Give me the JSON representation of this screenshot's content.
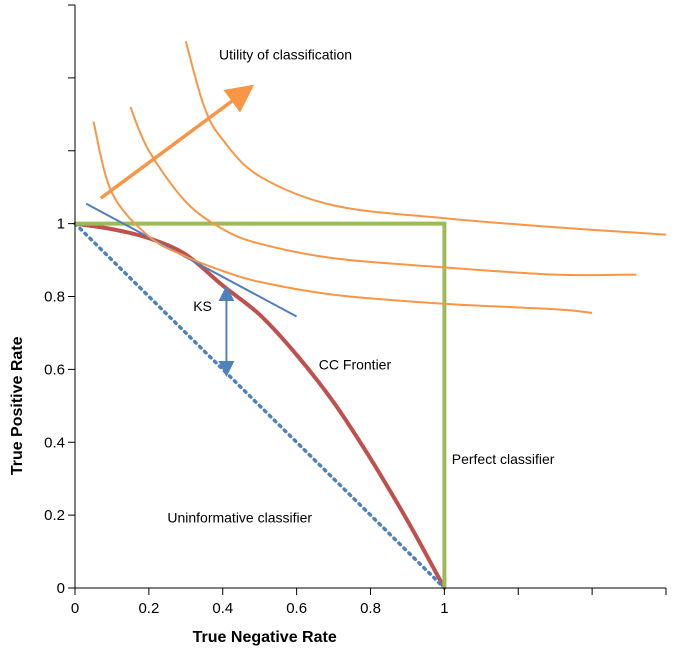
{
  "chart_data": {
    "type": "line",
    "xlabel": "True Negative Rate",
    "ylabel": "True Positive Rate",
    "xlim": [
      0,
      1.6
    ],
    "ylim": [
      0,
      1.6
    ],
    "x_ticks": [
      0,
      0.2,
      0.4,
      0.6,
      0.8,
      1
    ],
    "x_tick_labels": [
      "0",
      "0.2",
      "0.4",
      "0.6",
      "0.8",
      "1"
    ],
    "x_minor_ticks": [
      1.2,
      1.4,
      1.6
    ],
    "y_ticks": [
      0,
      0.2,
      0.4,
      0.6,
      0.8,
      1
    ],
    "y_tick_labels": [
      "0",
      "0.2",
      "0.4",
      "0.6",
      "0.8",
      "1"
    ],
    "y_minor_ticks": [
      1.2,
      1.4,
      1.6
    ],
    "grid": false,
    "series": [
      {
        "label": "CC Frontier",
        "color": "#c0504d",
        "points": [
          [
            0,
            1
          ],
          [
            0.1,
            0.985
          ],
          [
            0.2,
            0.96
          ],
          [
            0.3,
            0.915
          ],
          [
            0.4,
            0.83
          ],
          [
            0.5,
            0.75
          ],
          [
            0.6,
            0.64
          ],
          [
            0.7,
            0.51
          ],
          [
            0.8,
            0.355
          ],
          [
            0.9,
            0.185
          ],
          [
            1,
            0
          ]
        ]
      },
      {
        "label": "Uninformative classifier",
        "color": "#4f81bd",
        "style": "dotted",
        "points": [
          [
            0,
            1
          ],
          [
            1,
            0
          ]
        ]
      },
      {
        "label": "Perfect classifier",
        "color": "#9bbb59",
        "points": [
          [
            0,
            1
          ],
          [
            1,
            1
          ],
          [
            1,
            0
          ]
        ]
      },
      {
        "label": "",
        "color": "#4f81bd",
        "points": [
          [
            0.03,
            1.055
          ],
          [
            0.6,
            0.745
          ]
        ]
      },
      {
        "label": "",
        "color": "#f79646",
        "points": [
          [
            0.05,
            1.28
          ],
          [
            0.1,
            1.085
          ],
          [
            0.2,
            0.965
          ],
          [
            0.3,
            0.91
          ],
          [
            0.4,
            0.87
          ],
          [
            0.5,
            0.84
          ],
          [
            0.7,
            0.805
          ],
          [
            1.0,
            0.78
          ],
          [
            1.3,
            0.765
          ],
          [
            1.4,
            0.755
          ]
        ]
      },
      {
        "label": "",
        "color": "#f79646",
        "points": [
          [
            0.15,
            1.32
          ],
          [
            0.2,
            1.2
          ],
          [
            0.3,
            1.06
          ],
          [
            0.4,
            0.985
          ],
          [
            0.5,
            0.945
          ],
          [
            0.7,
            0.905
          ],
          [
            1.0,
            0.88
          ],
          [
            1.3,
            0.86
          ],
          [
            1.52,
            0.86
          ]
        ]
      },
      {
        "label": "",
        "color": "#f79646",
        "points": [
          [
            0.3,
            1.5
          ],
          [
            0.35,
            1.32
          ],
          [
            0.4,
            1.23
          ],
          [
            0.5,
            1.13
          ],
          [
            0.7,
            1.05
          ],
          [
            1.0,
            1.015
          ],
          [
            1.3,
            0.99
          ],
          [
            1.6,
            0.97
          ]
        ]
      }
    ],
    "annotations": [
      {
        "text": "Utility of classification",
        "x": 0.39,
        "y": 1.45
      },
      {
        "text": "KS",
        "x": 0.32,
        "y": 0.76
      },
      {
        "text": "CC Frontier",
        "x": 0.66,
        "y": 0.6
      },
      {
        "text": "Perfect classifier",
        "x": 1.02,
        "y": 0.34
      },
      {
        "text": "Uninformative classifier",
        "x": 0.25,
        "y": 0.18
      }
    ],
    "arrows": [
      {
        "name": "utility-arrow",
        "color": "#f79646",
        "from": [
          0.07,
          1.07
        ],
        "to": [
          0.47,
          1.37
        ]
      },
      {
        "name": "ks-arrow",
        "color": "#4f81bd",
        "from": [
          0.41,
          0.82
        ],
        "to": [
          0.41,
          0.59
        ]
      }
    ]
  }
}
